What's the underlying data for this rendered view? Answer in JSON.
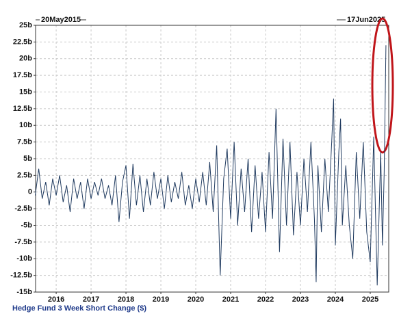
{
  "chart_data": {
    "type": "line",
    "annotations": [
      "20May2015",
      "17Jun2025"
    ],
    "y_label": "Hedge Fund 3 Week Short Change ($)",
    "x": [
      2015.4,
      2015.5,
      2015.6,
      2015.7,
      2015.8,
      2015.9,
      2016.0,
      2016.1,
      2016.2,
      2016.3,
      2016.4,
      2016.5,
      2016.6,
      2016.7,
      2016.8,
      2016.9,
      2017.0,
      2017.1,
      2017.2,
      2017.3,
      2017.4,
      2017.5,
      2017.6,
      2017.7,
      2017.8,
      2017.9,
      2018.0,
      2018.1,
      2018.2,
      2018.3,
      2018.4,
      2018.5,
      2018.6,
      2018.7,
      2018.8,
      2018.9,
      2019.0,
      2019.1,
      2019.2,
      2019.3,
      2019.4,
      2019.5,
      2019.6,
      2019.7,
      2019.8,
      2019.9,
      2020.0,
      2020.1,
      2020.2,
      2020.3,
      2020.4,
      2020.5,
      2020.6,
      2020.7,
      2020.8,
      2020.9,
      2021.0,
      2021.1,
      2021.2,
      2021.3,
      2021.4,
      2021.5,
      2021.6,
      2021.7,
      2021.8,
      2021.9,
      2022.0,
      2022.1,
      2022.2,
      2022.3,
      2022.4,
      2022.5,
      2022.6,
      2022.7,
      2022.8,
      2022.9,
      2023.0,
      2023.1,
      2023.2,
      2023.3,
      2023.4,
      2023.45,
      2023.5,
      2023.6,
      2023.7,
      2023.8,
      2023.9,
      2023.95,
      2024.0,
      2024.1,
      2024.15,
      2024.2,
      2024.3,
      2024.4,
      2024.5,
      2024.6,
      2024.7,
      2024.8,
      2024.9,
      2025.0,
      2025.1,
      2025.2,
      2025.3,
      2025.35,
      2025.4,
      2025.45
    ],
    "series": [
      {
        "color": "#1f3a5f",
        "values": [
          -0.5,
          3.5,
          -1,
          1.5,
          -2,
          2,
          -0.5,
          2.5,
          -1.5,
          1,
          -3,
          2,
          -1,
          1.5,
          -2.5,
          2,
          -1,
          1.5,
          -0.5,
          2,
          -1,
          1,
          -2,
          2.5,
          -4.5,
          1.5,
          4,
          -4,
          4.2,
          -2,
          2.5,
          -3,
          2,
          -2,
          3,
          -1,
          2,
          -2.5,
          2.5,
          -1.5,
          1.5,
          -1,
          3,
          -2,
          1,
          -2.5,
          2,
          -1.5,
          3,
          -2,
          4.5,
          -3,
          7,
          -12.5,
          2,
          6.5,
          -4,
          7.5,
          -5,
          3.5,
          -3,
          5,
          -6,
          4,
          -4,
          3,
          -6,
          6,
          -4,
          12.5,
          -9,
          8,
          -5,
          7.5,
          -6.5,
          3,
          -5,
          5,
          -3,
          7.5,
          -4,
          -13.5,
          4,
          -6,
          5,
          -3,
          8,
          14,
          -8,
          6,
          11,
          -5,
          4,
          -5,
          -10,
          6,
          -4,
          7.5,
          -6,
          -10.5,
          8.3,
          -14,
          6,
          -8,
          3,
          22
        ]
      }
    ],
    "xlim": [
      2015.41,
      2025.53
    ],
    "xticks": [
      2016,
      2017,
      2018,
      2019,
      2020,
      2021,
      2022,
      2023,
      2024,
      2025
    ],
    "ylim": [
      -15,
      25
    ],
    "yticks": [
      {
        "value": -15,
        "label": "-15b"
      },
      {
        "value": -12.5,
        "label": "-12.5b"
      },
      {
        "value": -10,
        "label": "-10b"
      },
      {
        "value": -7.5,
        "label": "-7.5b"
      },
      {
        "value": -5,
        "label": "-5b"
      },
      {
        "value": -2.5,
        "label": "-2.5b"
      },
      {
        "value": 0,
        "label": "0"
      },
      {
        "value": 2.5,
        "label": "2.5b"
      },
      {
        "value": 5,
        "label": "5b"
      },
      {
        "value": 7.5,
        "label": "7.5b"
      },
      {
        "value": 10,
        "label": "10b"
      },
      {
        "value": 12.5,
        "label": "12.5b"
      },
      {
        "value": 15,
        "label": "15b"
      },
      {
        "value": 17.5,
        "label": "17.5b"
      },
      {
        "value": 20,
        "label": "20b"
      },
      {
        "value": 22.5,
        "label": "22.5b"
      },
      {
        "value": 25,
        "label": "25b"
      }
    ],
    "grid": true
  }
}
